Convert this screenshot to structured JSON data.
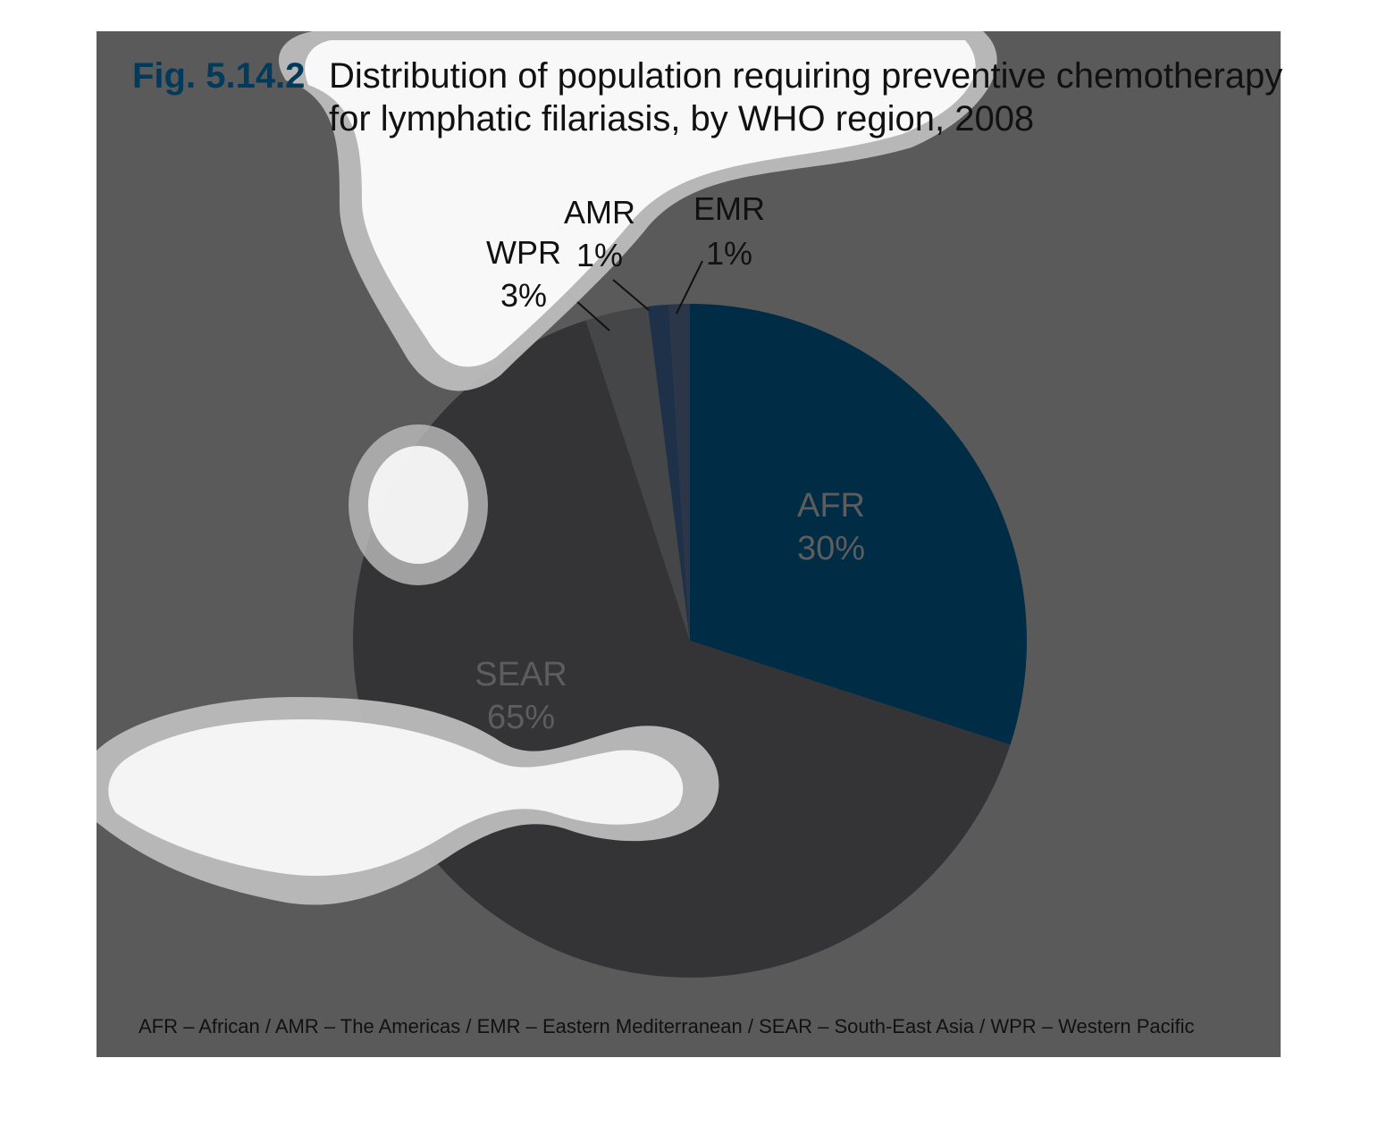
{
  "figure": {
    "number": "Fig. 5.14.2",
    "title_line1": "Distribution of population requiring preventive chemotherapy",
    "title_line2": "for lymphatic filariasis, by WHO region, 2008",
    "footnote": "AFR – African / AMR – The Americas / EMR – Eastern Mediterranean / SEAR – South-East Asia / WPR – Western Pacific"
  },
  "chart_data": {
    "type": "pie",
    "title": "Distribution of population requiring preventive chemotherapy for lymphatic filariasis, by WHO region, 2008",
    "unit": "%",
    "start_angle_deg": 0,
    "direction": "clockwise",
    "slices": [
      {
        "label": "AFR",
        "value": 30,
        "value_label": "30%",
        "color": "#002c45",
        "label_placement": "inside"
      },
      {
        "label": "SEAR",
        "value": 65,
        "value_label": "65%",
        "color": "#343436",
        "label_placement": "inside"
      },
      {
        "label": "WPR",
        "value": 3,
        "value_label": "3%",
        "color": "#444647",
        "label_placement": "callout"
      },
      {
        "label": "AMR",
        "value": 1,
        "value_label": "1%",
        "color": "#1f3148",
        "label_placement": "callout"
      },
      {
        "label": "EMR",
        "value": 1,
        "value_label": "1%",
        "color": "#2b3748",
        "label_placement": "callout"
      }
    ]
  },
  "colors": {
    "background_panel": "#5a5a5a",
    "fig_number": "#003a5d",
    "fig_number_accent": "#1f6f9f",
    "overlay_halo": "#bdbdbd",
    "overlay_fill": "#ffffff"
  }
}
